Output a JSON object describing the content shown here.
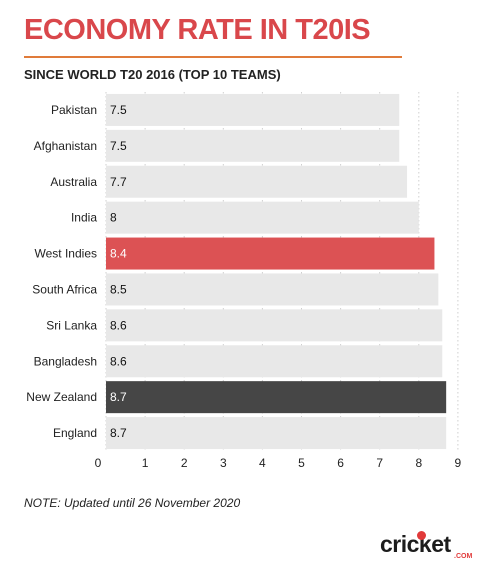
{
  "title": "ECONOMY RATE IN T20IS",
  "subtitle": "SINCE WORLD T20 2016 (TOP 10 TEAMS)",
  "note": "NOTE: Updated until 26 November 2020",
  "logo": {
    "word": "cricket",
    "suffix": ".COM"
  },
  "colors": {
    "title": "#d9474b",
    "rule": "#e07b3a",
    "bar_default": "#e8e8e8",
    "bar_highlight_red": "#dc5254",
    "bar_highlight_dark": "#464646"
  },
  "chart_data": {
    "type": "bar",
    "orientation": "horizontal",
    "title": "ECONOMY RATE IN T20IS",
    "subtitle": "SINCE WORLD T20 2016 (TOP 10 TEAMS)",
    "categories": [
      "Pakistan",
      "Afghanistan",
      "Australia",
      "India",
      "West Indies",
      "South Africa",
      "Sri Lanka",
      "Bangladesh",
      "New Zealand",
      "England"
    ],
    "values": [
      7.5,
      7.5,
      7.7,
      8,
      8.4,
      8.5,
      8.6,
      8.6,
      8.7,
      8.7
    ],
    "value_labels": [
      "7.5",
      "7.5",
      "7.7",
      "8",
      "8.4",
      "8.5",
      "8.6",
      "8.6",
      "8.7",
      "8.7"
    ],
    "highlight": {
      "West Indies": "red",
      "New Zealand": "dark"
    },
    "xlim": [
      0,
      9
    ],
    "xticks": [
      0,
      1,
      2,
      3,
      4,
      5,
      6,
      7,
      8,
      9
    ],
    "grid": true,
    "legend": "none"
  }
}
